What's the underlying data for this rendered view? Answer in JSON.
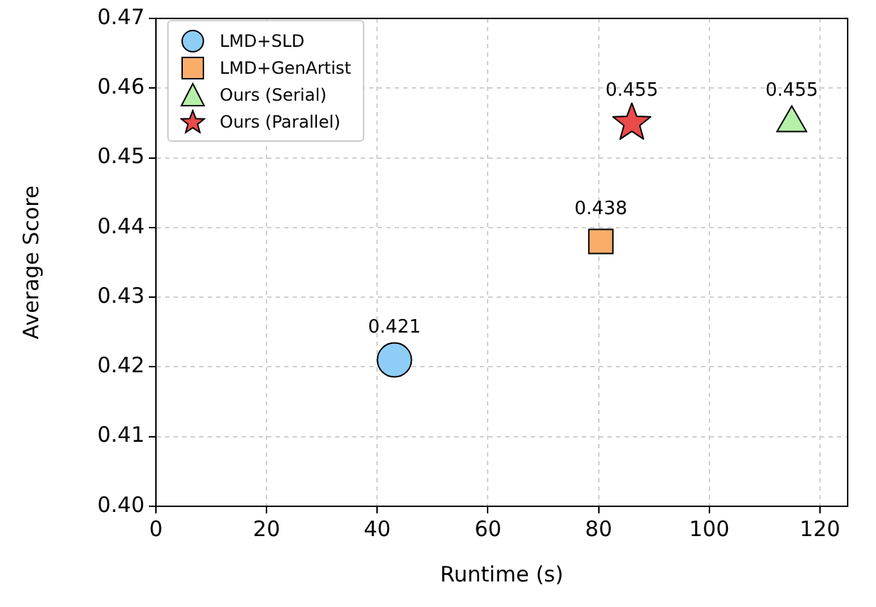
{
  "chart_data": {
    "type": "scatter",
    "xlabel": "Runtime (s)",
    "ylabel": "Average Score",
    "xlim": [
      0,
      125
    ],
    "xticks": [
      0,
      20,
      40,
      60,
      80,
      100,
      120
    ],
    "ylim": [
      0.4,
      0.47
    ],
    "yticks": [
      {
        "value": 0.4,
        "label": "0.40"
      },
      {
        "value": 0.41,
        "label": "0.41"
      },
      {
        "value": 0.42,
        "label": "0.42"
      },
      {
        "value": 0.43,
        "label": "0.43"
      },
      {
        "value": 0.44,
        "label": "0.44"
      },
      {
        "value": 0.45,
        "label": "0.45"
      },
      {
        "value": 0.46,
        "label": "0.46"
      },
      {
        "value": 0.47,
        "label": "0.47"
      }
    ],
    "grid": true,
    "legend": "top left",
    "data_labels": true,
    "series": [
      {
        "name": "LMD+SLD",
        "color": "#8ecdf6",
        "marker": "circle",
        "x": [
          43.1
        ],
        "values": [
          0.421
        ]
      },
      {
        "name": "LMD+GenArtist",
        "color": "#f9ad68",
        "marker": "square",
        "x": [
          80.4
        ],
        "values": [
          0.438
        ]
      },
      {
        "name": "Ours (Serial)",
        "color": "#b5f0a8",
        "marker": "triangle",
        "x": [
          114.9
        ],
        "values": [
          0.455
        ]
      },
      {
        "name": "Ours (Parallel)",
        "color": "#ea4a4a",
        "marker": "star",
        "x": [
          86.0
        ],
        "values": [
          0.455
        ]
      }
    ]
  }
}
